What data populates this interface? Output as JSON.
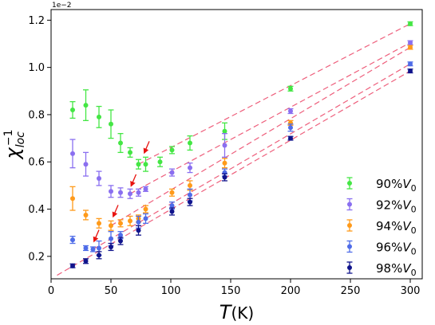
{
  "chart_data": {
    "type": "scatter",
    "title": "",
    "xlabel": "T(K)",
    "ylabel": "χ_loc^-1",
    "xlabel_main": "T",
    "xlabel_unit": "(K)",
    "ylabel_main": "χ",
    "ylabel_sub": "loc",
    "ylabel_sup": "−1",
    "offset_label": "1e−2",
    "xlim": [
      0,
      310
    ],
    "ylim": [
      0.105,
      1.245
    ],
    "xticks": [
      "0",
      "50",
      "100",
      "150",
      "200",
      "250",
      "300"
    ],
    "yticks": [
      "0.2",
      "0.4",
      "0.6",
      "0.8",
      "1.0",
      "1.2"
    ],
    "grid": false,
    "legend_position": "lower-right",
    "series": [
      {
        "name": "90%V0",
        "label_main": "90%",
        "label_var": "V",
        "label_sub": "0",
        "color": "#44e644",
        "x": [
          18,
          29,
          40,
          50,
          58,
          66,
          73,
          79,
          91,
          101,
          116,
          145,
          200,
          300
        ],
        "y": [
          0.82,
          0.84,
          0.79,
          0.76,
          0.68,
          0.64,
          0.59,
          0.59,
          0.6,
          0.65,
          0.68,
          0.73,
          0.91,
          1.185
        ],
        "err": [
          0.035,
          0.065,
          0.045,
          0.06,
          0.04,
          0.02,
          0.02,
          0.03,
          0.02,
          0.015,
          0.03,
          0.035,
          0.01,
          0.008
        ],
        "fit_x": [
          73,
          300
        ],
        "fit_y": [
          0.59,
          1.185
        ],
        "arrow_x": 78,
        "arrow_y": 0.64
      },
      {
        "name": "92%V0",
        "label_main": "92%",
        "label_var": "V",
        "label_sub": "0",
        "color": "#8a6ff0",
        "x": [
          18,
          29,
          40,
          50,
          58,
          66,
          73,
          79,
          101,
          116,
          145,
          200,
          300
        ],
        "y": [
          0.635,
          0.59,
          0.53,
          0.475,
          0.47,
          0.465,
          0.47,
          0.485,
          0.555,
          0.575,
          0.67,
          0.815,
          1.105
        ],
        "err": [
          0.06,
          0.05,
          0.03,
          0.025,
          0.02,
          0.02,
          0.015,
          0.01,
          0.015,
          0.02,
          0.05,
          0.01,
          0.008
        ],
        "fit_x": [
          66,
          300
        ],
        "fit_y": [
          0.465,
          1.105
        ],
        "arrow_x": 67,
        "arrow_y": 0.5
      },
      {
        "name": "94%V0",
        "label_main": "94%",
        "label_var": "V",
        "label_sub": "0",
        "color": "#ff9a1a",
        "x": [
          18,
          29,
          40,
          50,
          58,
          66,
          73,
          79,
          101,
          116,
          145,
          200,
          300
        ],
        "y": [
          0.445,
          0.375,
          0.34,
          0.33,
          0.34,
          0.35,
          0.36,
          0.4,
          0.47,
          0.5,
          0.595,
          0.765,
          1.085
        ],
        "err": [
          0.05,
          0.02,
          0.02,
          0.02,
          0.015,
          0.02,
          0.015,
          0.015,
          0.015,
          0.02,
          0.02,
          0.01,
          0.008
        ],
        "fit_x": [
          50,
          300
        ],
        "fit_y": [
          0.33,
          1.085
        ],
        "arrow_x": 52,
        "arrow_y": 0.37
      },
      {
        "name": "96%V0",
        "label_main": "96%",
        "label_var": "V",
        "label_sub": "0",
        "color": "#4f6ce8",
        "x": [
          18,
          29,
          35,
          40,
          50,
          58,
          73,
          79,
          101,
          116,
          145,
          200,
          300
        ],
        "y": [
          0.27,
          0.235,
          0.23,
          0.235,
          0.275,
          0.29,
          0.345,
          0.36,
          0.415,
          0.46,
          0.555,
          0.745,
          1.015
        ],
        "err": [
          0.015,
          0.01,
          0.01,
          0.03,
          0.03,
          0.015,
          0.025,
          0.02,
          0.015,
          0.025,
          0.015,
          0.015,
          0.008
        ],
        "fit_x": [
          35,
          300
        ],
        "fit_y": [
          0.23,
          1.015
        ],
        "arrow_x": 36,
        "arrow_y": 0.265
      },
      {
        "name": "98%V0",
        "label_main": "98%",
        "label_var": "V",
        "label_sub": "0",
        "color": "#10148c",
        "x": [
          18,
          29,
          40,
          50,
          58,
          73,
          101,
          116,
          145,
          200,
          300
        ],
        "y": [
          0.16,
          0.18,
          0.205,
          0.24,
          0.265,
          0.31,
          0.39,
          0.43,
          0.535,
          0.7,
          0.985
        ],
        "err": [
          0.008,
          0.01,
          0.015,
          0.015,
          0.015,
          0.02,
          0.015,
          0.015,
          0.015,
          0.008,
          0.008
        ],
        "fit_x": [
          5,
          300
        ],
        "fit_y": [
          0.12,
          0.985
        ]
      }
    ]
  }
}
